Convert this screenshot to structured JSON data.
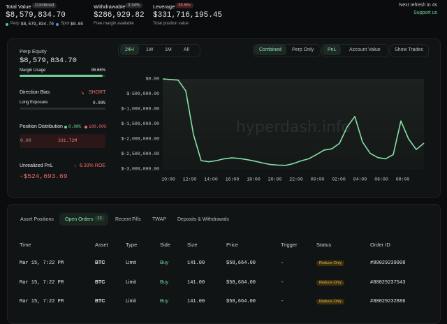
{
  "header": {
    "total_value": {
      "label": "Total Value",
      "badge": "Combined",
      "value": "$8,579,834.70",
      "perp_label": "Perp",
      "perp_value": "$8,579,834.70",
      "spot_label": "Spot",
      "spot_value": "$0.00"
    },
    "withdrawable": {
      "label": "Withdrawable",
      "badge": "3.34%",
      "value": "$286,929.82",
      "note": "Free margin available"
    },
    "leverage": {
      "label": "Leverage",
      "badge": "38.66x",
      "value": "$331,716,195.45",
      "note": "Total position value"
    },
    "refresh": "Next refresh in 4s",
    "support": "Support us"
  },
  "summary": {
    "perp_equity": {
      "label": "Perp Equity",
      "value": "$8,579,834.70"
    },
    "margin_usage": {
      "label": "Margin Usage",
      "value": "96.66%"
    },
    "direction_bias": {
      "label": "Direction Bias",
      "value": "SHORT"
    },
    "long_exposure": {
      "label": "Long Exposure",
      "value": "0.00%"
    },
    "position_distribution": {
      "label": "Position Distribution",
      "long_pct": "0.00%",
      "short_pct": "100.00%",
      "long_value": "0.00",
      "short_value": "331.72M"
    },
    "unrealized_pnl": {
      "label": "Unrealized PnL",
      "roe": "6.33% ROE",
      "value": "-$524,693.69"
    }
  },
  "chart_controls": {
    "ranges": [
      "24H",
      "1W",
      "1M",
      "All"
    ],
    "scopes": [
      "Combined",
      "Perp Only"
    ],
    "metrics": [
      "PnL",
      "Account Value"
    ],
    "trades": "Show Trades"
  },
  "chart_data": {
    "type": "line",
    "color": "#86dfa6",
    "watermark": "hyperdash.info",
    "grid": true,
    "ylim": [
      -3000000,
      0
    ],
    "yticks": [
      {
        "value": 0,
        "label": "$0.00"
      },
      {
        "value": -500000,
        "label": "$-500,000.00"
      },
      {
        "value": -1000000,
        "label": "$-1,000,000.00"
      },
      {
        "value": -1500000,
        "label": "$-1,500,000.00"
      },
      {
        "value": -2000000,
        "label": "$-2,000,000.00"
      },
      {
        "value": -2500000,
        "label": "$-2,500,000.00"
      },
      {
        "value": -3000000,
        "label": "$-3,000,000.00"
      }
    ],
    "x_labels": [
      "10:00",
      "12:00",
      "14:00",
      "16:00",
      "18:00",
      "20:00",
      "22:00",
      "00:00",
      "02:00",
      "04:00",
      "06:00",
      "08:00"
    ],
    "values": [
      0,
      -20000,
      -40000,
      -400000,
      -1850000,
      -2720000,
      -2760000,
      -2720000,
      -2660000,
      -2630000,
      -2650000,
      -2690000,
      -2740000,
      -2800000,
      -2850000,
      -2870000,
      -2880000,
      -2820000,
      -2730000,
      -2660000,
      -2520000,
      -2370000,
      -2330000,
      -2150000,
      -1600000,
      -1250000,
      -2100000,
      -2480000,
      -2620000,
      -2660000,
      -2520000,
      -1400000,
      -2000000,
      -2350000,
      -2140000
    ]
  },
  "table": {
    "tabs": [
      "Asset Positions",
      "Open Orders",
      "Recent Fills",
      "TWAP",
      "Deposits & Withdrawals"
    ],
    "open_count": "12",
    "columns": [
      "Time",
      "Asset",
      "Type",
      "Side",
      "Size",
      "Price",
      "Trigger",
      "Status",
      "Order ID"
    ],
    "rows": [
      [
        "Mar 15, 7:22 PM",
        "BTC",
        "Limit",
        "Buy",
        "141.00",
        "$58,664.00",
        "-",
        "Reduce-Only",
        "#80029239908"
      ],
      [
        "Mar 15, 7:22 PM",
        "BTC",
        "Limit",
        "Buy",
        "141.00",
        "$58,664.00",
        "-",
        "Reduce-Only",
        "#80029237543"
      ],
      [
        "Mar 15, 7:22 PM",
        "BTC",
        "Limit",
        "Buy",
        "141.00",
        "$58,664.00",
        "-",
        "Reduce-Only",
        "#80029232886"
      ]
    ]
  }
}
